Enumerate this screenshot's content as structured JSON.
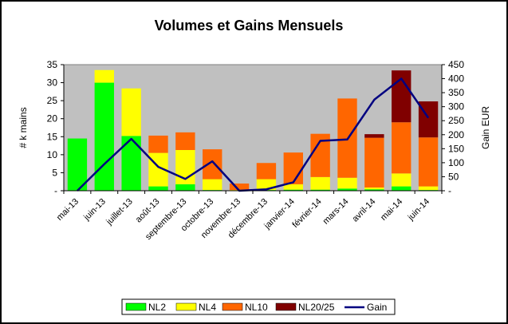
{
  "chart_data": {
    "type": "bar",
    "title": "Volumes et Gains Mensuels",
    "ylabel": "# k mains",
    "y2label": "Gain EUR",
    "ylim": [
      0,
      35
    ],
    "y2lim": [
      0,
      450
    ],
    "yticks": [
      "-",
      "5",
      "10",
      "15",
      "20",
      "25",
      "30",
      "35"
    ],
    "y2ticks": [
      "-",
      "50",
      "100",
      "150",
      "200",
      "250",
      "300",
      "350",
      "400",
      "450"
    ],
    "categories": [
      "mai-13",
      "juin-13",
      "juillet-13",
      "août-13",
      "septembre-13",
      "octobre-13",
      "novembre-13",
      "décembre-13",
      "janvier-14",
      "février-14",
      "mars-14",
      "avril-14",
      "mai-14",
      "juin-14"
    ],
    "series": [
      {
        "name": "NL2",
        "kind": "bar",
        "axis": "left",
        "color": "#00ff00",
        "values": [
          14.5,
          30,
          15.2,
          1.2,
          1.8,
          0.2,
          0,
          0.2,
          0.3,
          0.3,
          0.6,
          0.4,
          1.2,
          0.2
        ]
      },
      {
        "name": "NL4",
        "kind": "bar",
        "axis": "left",
        "color": "#ffff00",
        "values": [
          0,
          3.5,
          13.2,
          9.3,
          9.5,
          3,
          0.2,
          3,
          1.5,
          3.5,
          3,
          0.5,
          3.6,
          1
        ]
      },
      {
        "name": "NL10",
        "kind": "bar",
        "axis": "left",
        "color": "#ff6600",
        "values": [
          0,
          0,
          0,
          4.8,
          4.9,
          8.3,
          1.8,
          4.5,
          8.8,
          12,
          22,
          13.8,
          14.2,
          13.6
        ]
      },
      {
        "name": "NL20/25",
        "kind": "bar",
        "axis": "left",
        "color": "#800000",
        "values": [
          0,
          0,
          0,
          0,
          0,
          0,
          0,
          0,
          0,
          0,
          0,
          1,
          14.4,
          10
        ]
      },
      {
        "name": "Gain",
        "kind": "line",
        "axis": "right",
        "color": "#000080",
        "values": [
          -15,
          95,
          185,
          85,
          42,
          105,
          -15,
          5,
          30,
          178,
          183,
          325,
          400,
          260
        ]
      }
    ],
    "grid": false,
    "legend": "bottom",
    "plot_background": "#c0c0c0"
  }
}
